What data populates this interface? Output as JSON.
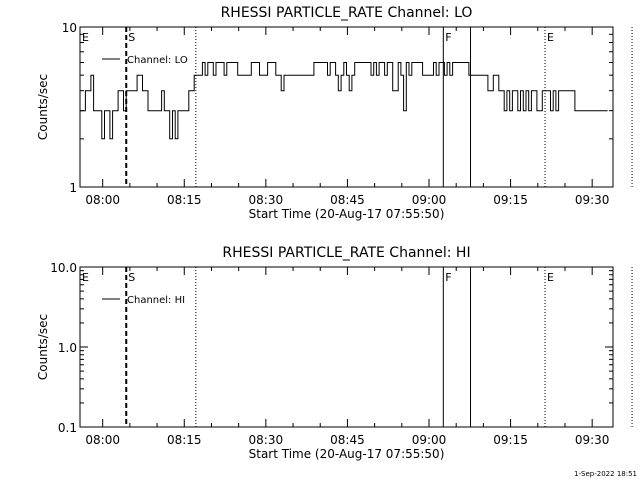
{
  "footer_date": "1-Sep-2022 18:51",
  "chart_data": [
    {
      "type": "line",
      "title": "RHESSI PARTICLE_RATE Channel: LO",
      "xlabel": "Start Time (20-Aug-17 07:55:50)",
      "ylabel": "Counts/sec",
      "yscale": "log",
      "ylim": [
        1,
        10
      ],
      "ytick_labels": [
        "1",
        "10"
      ],
      "ytick_values": [
        1,
        10
      ],
      "xlim_minutes": [
        0,
        98
      ],
      "xtick_labels": [
        "08:00",
        "08:15",
        "08:30",
        "08:45",
        "09:00",
        "09:15",
        "09:30"
      ],
      "xtick_minutes": [
        4.17,
        19.17,
        34.17,
        49.17,
        64.17,
        79.17,
        94.17
      ],
      "legend": "Channel: LO",
      "markers": [
        {
          "label": "E",
          "minute": 0,
          "style": "none"
        },
        {
          "label": "S",
          "minute": 8.5,
          "style": "dashed"
        },
        {
          "label": "",
          "minute": 21.3,
          "style": "dotted"
        },
        {
          "label": "F",
          "minute": 66.8,
          "style": "solid"
        },
        {
          "label": "",
          "minute": 71.8,
          "style": "solid"
        },
        {
          "label": "E",
          "minute": 85.5,
          "style": "dotted"
        },
        {
          "label": "",
          "minute": 101.5,
          "style": "dotted"
        }
      ],
      "series": [
        {
          "name": "Channel: LO",
          "x": [
            0,
            0.5,
            1,
            1.5,
            2,
            2.5,
            3,
            3.5,
            4,
            4.5,
            5,
            5.5,
            6,
            6.5,
            7,
            7.5,
            8,
            8.5,
            9,
            9.5,
            10,
            10.5,
            11,
            11.5,
            12,
            12.5,
            13,
            13.5,
            14,
            14.5,
            15,
            15.5,
            16,
            16.5,
            17,
            17.5,
            18,
            18.5,
            19,
            19.5,
            20,
            20.5,
            21,
            21.5,
            22,
            22.5,
            23,
            23.5,
            24,
            24.5,
            25,
            25.5,
            26,
            26.5,
            27,
            27.5,
            28,
            28.5,
            29,
            29.5,
            30,
            30.5,
            31,
            31.5,
            32,
            32.5,
            33,
            33.5,
            34,
            34.5,
            35,
            35.5,
            36,
            36.5,
            37,
            37.5,
            38,
            38.5,
            39,
            39.5,
            40,
            40.5,
            41,
            41.5,
            42,
            42.5,
            43,
            43.5,
            44,
            44.5,
            45,
            45.5,
            46,
            46.5,
            47,
            47.5,
            48,
            48.5,
            49,
            49.5,
            50,
            50.5,
            51,
            51.5,
            52,
            52.5,
            53,
            53.5,
            54,
            54.5,
            55,
            55.5,
            56,
            56.5,
            57,
            57.5,
            58,
            58.5,
            59,
            59.5,
            60,
            60.5,
            61,
            61.5,
            62,
            62.5,
            63,
            63.5,
            64,
            64.5,
            65,
            65.5,
            66,
            66.5,
            67,
            67.5,
            68,
            68.5,
            69,
            69.5,
            70,
            70.5,
            71,
            71.5,
            72,
            72.5,
            73,
            73.5,
            74,
            74.5,
            75,
            75.5,
            76,
            76.5,
            77,
            77.5,
            78,
            78.5,
            79,
            79.5,
            80,
            80.5,
            81,
            81.5,
            82,
            82.5,
            83,
            83.5,
            84,
            84.5,
            85,
            85.5,
            86,
            86.5,
            87,
            87.5,
            88,
            88.5,
            89,
            89.5,
            90,
            90.5,
            91,
            91.5,
            92,
            92.5,
            93,
            93.5,
            94,
            94.5,
            95,
            95.5,
            96,
            96.5,
            97
          ],
          "y": [
            3,
            3,
            4,
            4,
            5,
            3,
            3,
            3,
            2,
            3,
            3,
            2,
            3,
            3,
            4,
            4,
            3,
            4,
            4,
            4,
            4,
            5,
            5,
            4,
            4,
            3,
            3,
            3,
            3,
            3,
            4,
            3,
            3,
            2,
            3,
            2,
            3,
            3,
            3,
            3,
            4,
            4,
            5,
            5,
            5,
            6,
            5,
            6,
            6,
            5,
            6,
            6,
            6,
            5,
            6,
            6,
            6,
            6,
            5,
            5,
            5,
            5,
            5,
            6,
            6,
            6,
            5,
            5,
            5,
            6,
            6,
            6,
            5,
            5,
            4,
            5,
            5,
            5,
            5,
            5,
            5,
            5,
            5,
            5,
            5,
            5,
            6,
            6,
            6,
            6,
            6,
            5,
            6,
            6,
            5,
            4,
            5,
            6,
            5,
            4,
            5,
            6,
            6,
            6,
            6,
            6,
            6,
            5,
            6,
            5,
            6,
            6,
            5,
            6,
            6,
            4,
            4,
            6,
            5,
            3,
            6,
            5,
            6,
            6,
            6,
            6,
            5,
            5,
            5,
            5,
            6,
            5,
            6,
            6,
            5,
            6,
            5,
            6,
            6,
            6,
            6,
            6,
            6,
            5,
            5,
            5,
            5,
            5,
            5,
            5,
            4,
            4,
            5,
            5,
            4,
            4,
            3,
            4,
            3,
            4,
            4,
            3,
            4,
            3,
            4,
            3,
            4,
            4,
            3,
            3,
            4,
            4,
            4,
            3,
            4,
            3,
            4,
            4,
            4,
            4,
            4,
            4,
            3,
            3,
            3,
            3,
            3,
            3,
            3,
            3,
            3,
            3,
            3,
            3,
            3
          ]
        }
      ]
    },
    {
      "type": "line",
      "title": "RHESSI PARTICLE_RATE Channel: HI",
      "xlabel": "Start Time (20-Aug-17 07:55:50)",
      "ylabel": "Counts/sec",
      "yscale": "log",
      "ylim": [
        0.1,
        10
      ],
      "ytick_labels": [
        "0.1",
        "1.0",
        "10.0"
      ],
      "ytick_values": [
        0.1,
        1,
        10
      ],
      "xlim_minutes": [
        0,
        98
      ],
      "xtick_labels": [
        "08:00",
        "08:15",
        "08:30",
        "08:45",
        "09:00",
        "09:15",
        "09:30"
      ],
      "xtick_minutes": [
        4.17,
        19.17,
        34.17,
        49.17,
        64.17,
        79.17,
        94.17
      ],
      "legend": "Channel: HI",
      "markers": [
        {
          "label": "E",
          "minute": 0,
          "style": "none"
        },
        {
          "label": "S",
          "minute": 8.5,
          "style": "dashed"
        },
        {
          "label": "",
          "minute": 21.3,
          "style": "dotted"
        },
        {
          "label": "F",
          "minute": 66.8,
          "style": "solid"
        },
        {
          "label": "",
          "minute": 71.8,
          "style": "solid"
        },
        {
          "label": "E",
          "minute": 85.5,
          "style": "dotted"
        },
        {
          "label": "",
          "minute": 101.5,
          "style": "dotted"
        }
      ],
      "series": [
        {
          "name": "Channel: HI",
          "x": [],
          "y": []
        }
      ]
    }
  ]
}
